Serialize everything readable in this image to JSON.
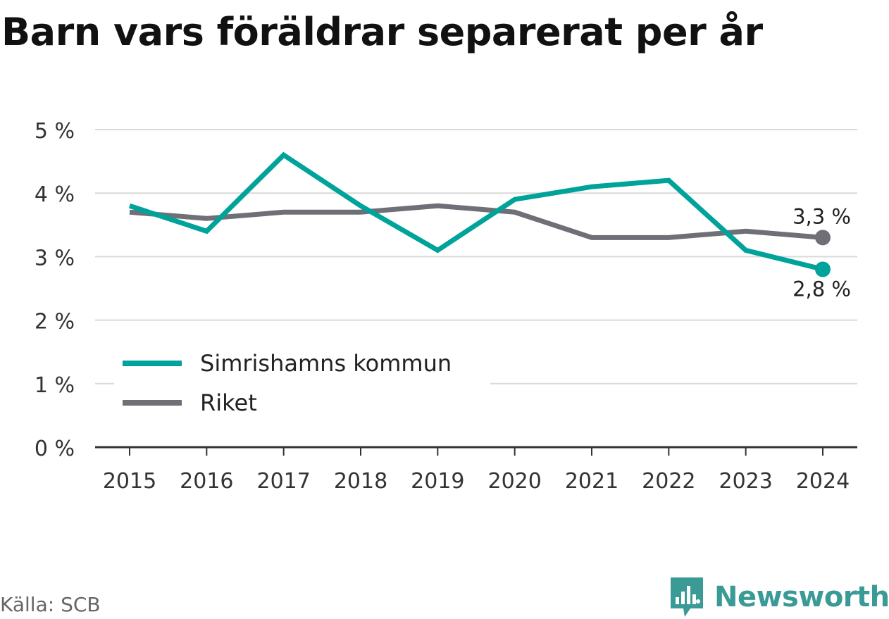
{
  "title": "Barn vars föräldrar separerat per år",
  "source": "Källa: SCB",
  "brand": {
    "name": "Newsworthy",
    "icon": "bar-chart-speech-icon",
    "color": "#3a9a96"
  },
  "chart_data": {
    "type": "line",
    "x": [
      "2015",
      "2016",
      "2017",
      "2018",
      "2019",
      "2020",
      "2021",
      "2022",
      "2023",
      "2024"
    ],
    "ylim": [
      0,
      5
    ],
    "yticks": [
      {
        "value": 0,
        "label": "0 %"
      },
      {
        "value": 1,
        "label": "1 %"
      },
      {
        "value": 2,
        "label": "2 %"
      },
      {
        "value": 3,
        "label": "3 %"
      },
      {
        "value": 4,
        "label": "4 %"
      },
      {
        "value": 5,
        "label": "5 %"
      }
    ],
    "grid": true,
    "legend_position": "bottom-left",
    "series": [
      {
        "name": "Simrishamns kommun",
        "color": "#00a39a",
        "values": [
          3.8,
          3.4,
          4.6,
          3.8,
          3.1,
          3.9,
          4.1,
          4.2,
          3.1,
          2.8
        ],
        "end_label": "2,8 %"
      },
      {
        "name": "Riket",
        "color": "#6f6f77",
        "values": [
          3.7,
          3.6,
          3.7,
          3.7,
          3.8,
          3.7,
          3.3,
          3.3,
          3.4,
          3.3
        ],
        "end_label": "3,3 %"
      }
    ]
  }
}
